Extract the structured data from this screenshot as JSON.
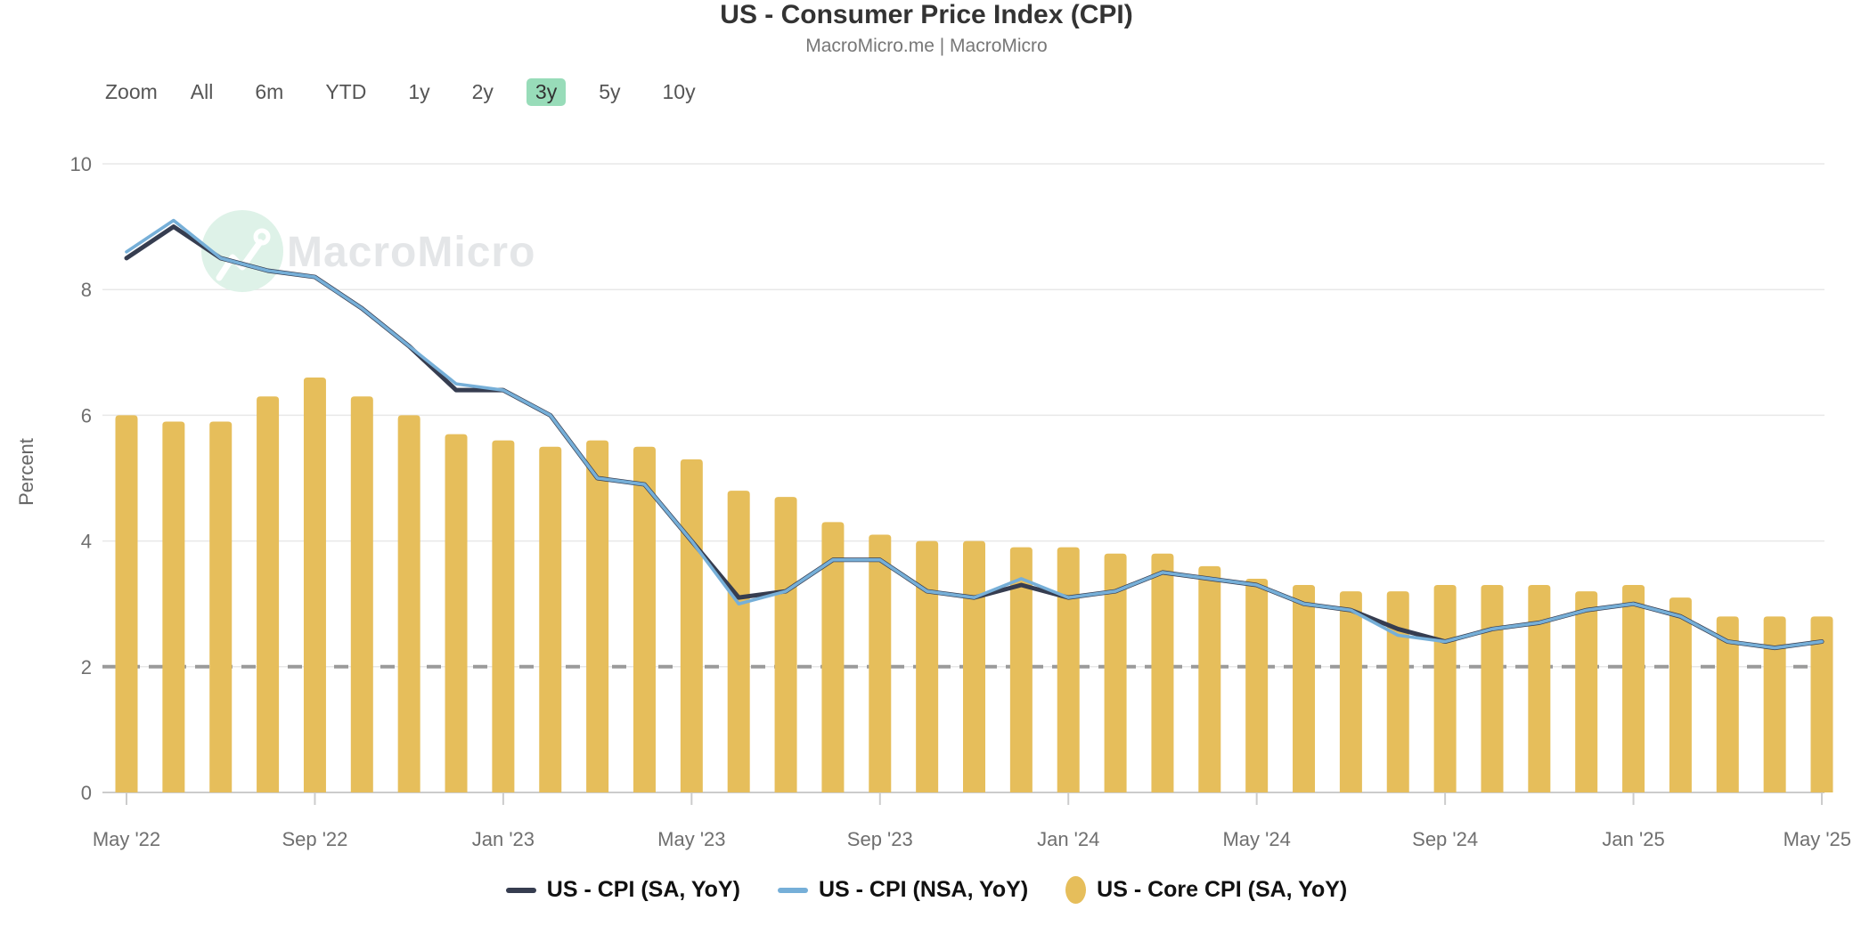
{
  "header": {
    "title": "US - Consumer Price Index (CPI)",
    "subtitle": "MacroMicro.me | MacroMicro"
  },
  "toolbar": {
    "zoom_label": "Zoom",
    "ranges": [
      "All",
      "6m",
      "YTD",
      "1y",
      "2y",
      "3y",
      "5y",
      "10y"
    ],
    "active_range": "3y"
  },
  "watermark": {
    "text": "MacroMicro"
  },
  "y_axis": {
    "label": "Percent",
    "ticks": [
      0,
      2,
      4,
      6,
      8,
      10
    ],
    "min": 0,
    "max": 10
  },
  "reference_line": {
    "value": 2
  },
  "colors": {
    "sa_line": "#363D50",
    "nsa_line": "#76AFD8",
    "core_bar": "#E6BE5B",
    "target_dash": "#9A9A9A",
    "gridline": "#E8E8E8",
    "axis_line": "#CCCCCC",
    "axis_text": "#6F6F6F",
    "active_range_bg": "#98DCB9",
    "watermark_circle": "#DEF2E8",
    "watermark_glyph": "#FFFFFF",
    "watermark_text": "#E4E6E8"
  },
  "legend": [
    {
      "label": "US - CPI (SA, YoY)",
      "marker": "dash",
      "color": "#363D50"
    },
    {
      "label": "US - CPI (NSA, YoY)",
      "marker": "dash",
      "color": "#76AFD8"
    },
    {
      "label": "US - Core CPI (SA, YoY)",
      "marker": "ellipse",
      "color": "#E6BE5B"
    }
  ],
  "chart_data": {
    "type": "mixed",
    "title": "US - Consumer Price Index (CPI)",
    "xlabel": "",
    "ylabel": "Percent",
    "ylim": [
      0,
      10
    ],
    "grid": true,
    "legend_position": "bottom",
    "x": [
      "May '22",
      "Jun '22",
      "Jul '22",
      "Aug '22",
      "Sep '22",
      "Oct '22",
      "Nov '22",
      "Dec '22",
      "Jan '23",
      "Feb '23",
      "Mar '23",
      "Apr '23",
      "May '23",
      "Jun '23",
      "Jul '23",
      "Aug '23",
      "Sep '23",
      "Oct '23",
      "Nov '23",
      "Dec '23",
      "Jan '24",
      "Feb '24",
      "Mar '24",
      "Apr '24",
      "May '24",
      "Jun '24",
      "Jul '24",
      "Aug '24",
      "Sep '24",
      "Oct '24",
      "Nov '24",
      "Dec '24",
      "Jan '25",
      "Feb '25",
      "Mar '25",
      "Apr '25",
      "May '25"
    ],
    "xtick_indices": [
      0,
      4,
      8,
      12,
      16,
      20,
      24,
      28,
      32,
      36
    ],
    "reference_value": 2,
    "series": [
      {
        "name": "US - CPI (SA, YoY)",
        "type": "line",
        "color": "#363D50",
        "values": [
          8.5,
          9.0,
          8.5,
          8.3,
          8.2,
          7.7,
          7.1,
          6.4,
          6.4,
          6.0,
          5.0,
          4.9,
          4.0,
          3.1,
          3.2,
          3.7,
          3.7,
          3.2,
          3.1,
          3.3,
          3.1,
          3.2,
          3.5,
          3.4,
          3.3,
          3.0,
          2.9,
          2.6,
          2.4,
          2.6,
          2.7,
          2.9,
          3.0,
          2.8,
          2.4,
          2.3,
          2.4
        ]
      },
      {
        "name": "US - CPI (NSA, YoY)",
        "type": "line",
        "color": "#76AFD8",
        "values": [
          8.6,
          9.1,
          8.5,
          8.3,
          8.2,
          7.7,
          7.1,
          6.5,
          6.4,
          6.0,
          5.0,
          4.9,
          4.0,
          3.0,
          3.2,
          3.7,
          3.7,
          3.2,
          3.1,
          3.4,
          3.1,
          3.2,
          3.5,
          3.4,
          3.3,
          3.0,
          2.9,
          2.5,
          2.4,
          2.6,
          2.7,
          2.9,
          3.0,
          2.8,
          2.4,
          2.3,
          2.4
        ]
      },
      {
        "name": "US - Core CPI (SA, YoY)",
        "type": "bar",
        "color": "#E6BE5B",
        "values": [
          6.0,
          5.9,
          5.9,
          6.3,
          6.6,
          6.3,
          6.0,
          5.7,
          5.6,
          5.5,
          5.6,
          5.5,
          5.3,
          4.8,
          4.7,
          4.3,
          4.1,
          4.0,
          4.0,
          3.9,
          3.9,
          3.8,
          3.8,
          3.6,
          3.4,
          3.3,
          3.2,
          3.2,
          3.3,
          3.3,
          3.3,
          3.2,
          3.3,
          3.1,
          2.8,
          2.8,
          2.8
        ]
      }
    ]
  }
}
